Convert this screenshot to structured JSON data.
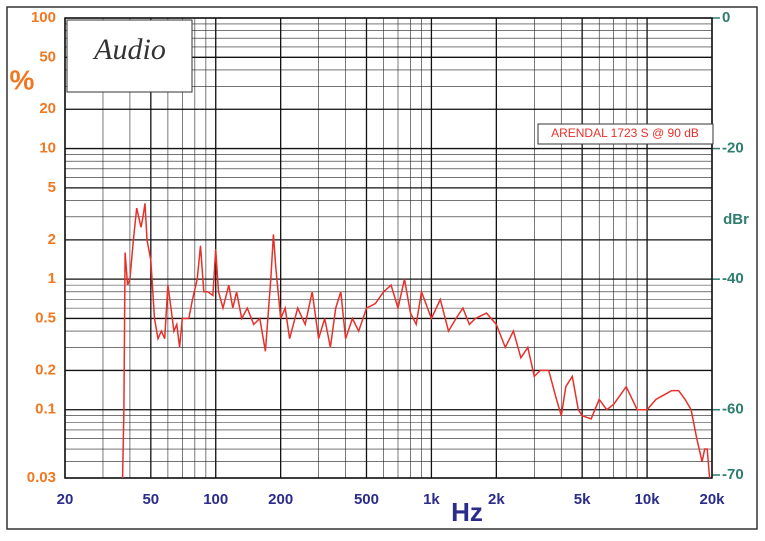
{
  "chart_data": {
    "type": "line",
    "logo": "Audio",
    "xlabel": "Hz",
    "ylabel": "%",
    "y2label": "dBr",
    "xscale": "log",
    "yscale": "log",
    "grid": true,
    "xlim": [
      20,
      20000
    ],
    "ylim": [
      0.03,
      100
    ],
    "y2lim": [
      -70.46,
      0
    ],
    "xticks": [
      20,
      50,
      100,
      200,
      500,
      {
        "value": 1000,
        "label": "1k"
      },
      {
        "value": 2000,
        "label": "2k"
      },
      {
        "value": 5000,
        "label": "5k"
      },
      {
        "value": 10000,
        "label": "10k"
      },
      {
        "value": 20000,
        "label": "20k"
      }
    ],
    "yticks": [
      100,
      50,
      20,
      10,
      5,
      2,
      1,
      0.5,
      0.2,
      0.1,
      0.03
    ],
    "y2ticks": [
      0,
      -20,
      -40,
      -60,
      -70
    ],
    "legend_position": "upper right",
    "x": [
      37,
      37.5,
      38,
      39,
      40,
      41.5,
      43,
      45,
      46,
      47,
      48,
      50,
      52,
      54,
      56,
      58,
      60,
      62,
      64,
      66,
      68,
      70,
      75,
      78,
      82,
      85,
      88,
      92,
      97,
      100,
      103,
      108,
      115,
      120,
      125,
      132,
      140,
      150,
      160,
      170,
      180,
      185,
      190,
      200,
      210,
      220,
      240,
      260,
      280,
      300,
      320,
      340,
      360,
      380,
      400,
      430,
      460,
      500,
      550,
      600,
      650,
      700,
      750,
      800,
      850,
      900,
      1000,
      1100,
      1200,
      1300,
      1400,
      1500,
      1600,
      1800,
      2000,
      2200,
      2400,
      2600,
      2800,
      3000,
      3200,
      3500,
      3800,
      4000,
      4200,
      4500,
      4800,
      5000,
      5500,
      6000,
      6500,
      7000,
      8000,
      9000,
      10000,
      11000,
      12000,
      13000,
      14000,
      15000,
      16000,
      17000,
      18000,
      18500,
      19000,
      19500
    ],
    "series": [
      {
        "name": "ARENDAL 1723 S @ 90 dB",
        "color": "#e8302a",
        "values": [
          0.03,
          0.1,
          1.6,
          0.9,
          1.0,
          2.0,
          3.5,
          2.5,
          3.0,
          3.8,
          2.0,
          1.4,
          0.5,
          0.35,
          0.4,
          0.35,
          0.9,
          0.6,
          0.4,
          0.45,
          0.3,
          0.5,
          0.5,
          0.7,
          1.0,
          1.8,
          0.8,
          0.8,
          0.75,
          1.7,
          0.8,
          0.6,
          0.9,
          0.6,
          0.8,
          0.5,
          0.6,
          0.45,
          0.5,
          0.28,
          1.0,
          2.2,
          1.2,
          0.5,
          0.6,
          0.35,
          0.6,
          0.45,
          0.8,
          0.35,
          0.5,
          0.3,
          0.6,
          0.8,
          0.35,
          0.5,
          0.4,
          0.6,
          0.65,
          0.8,
          0.9,
          0.6,
          1.0,
          0.55,
          0.45,
          0.8,
          0.5,
          0.7,
          0.4,
          0.5,
          0.6,
          0.45,
          0.5,
          0.55,
          0.45,
          0.3,
          0.4,
          0.25,
          0.3,
          0.18,
          0.2,
          0.2,
          0.12,
          0.09,
          0.15,
          0.18,
          0.1,
          0.09,
          0.085,
          0.12,
          0.1,
          0.11,
          0.15,
          0.1,
          0.1,
          0.12,
          0.13,
          0.14,
          0.14,
          0.12,
          0.1,
          0.06,
          0.04,
          0.05,
          0.05,
          0.03
        ]
      }
    ]
  }
}
